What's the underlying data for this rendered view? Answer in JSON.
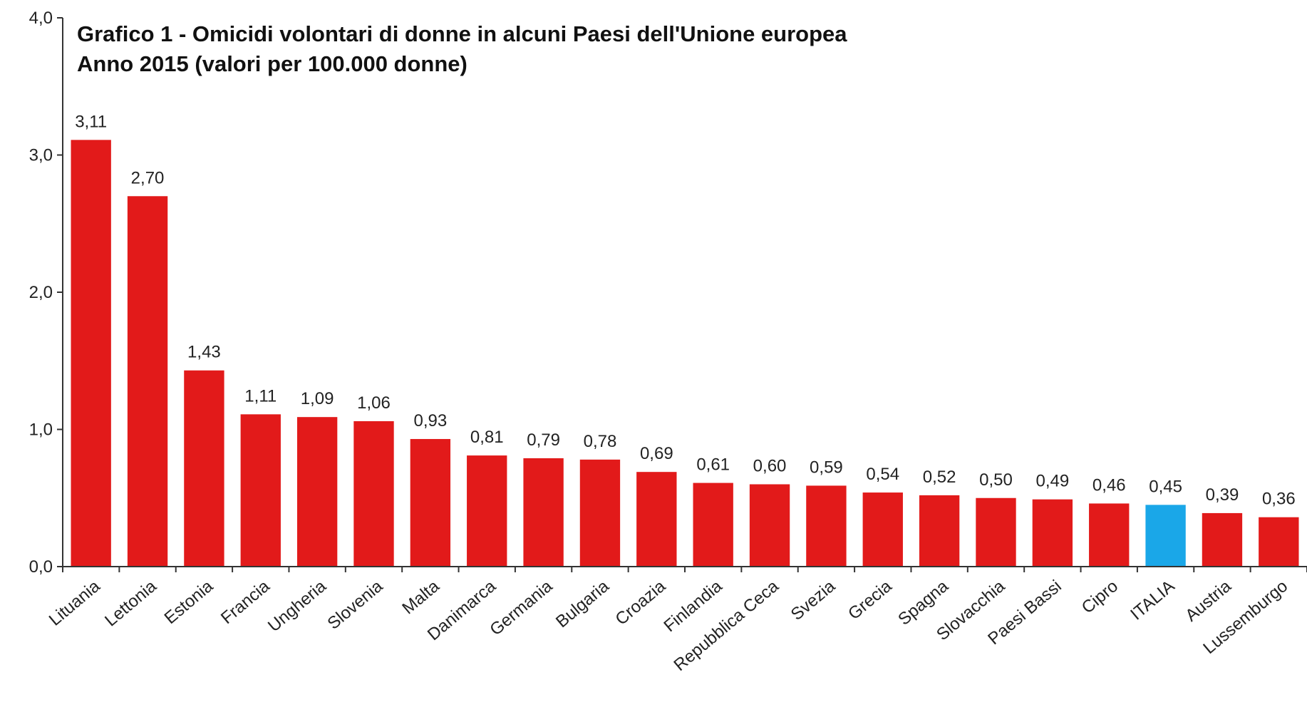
{
  "chart_data": {
    "type": "bar",
    "title": "Grafico 1 - Omicidi volontari di donne in alcuni Paesi dell'Unione europea",
    "subtitle": "Anno 2015 (valori per 100.000 donne)",
    "xlabel": "",
    "ylabel": "",
    "ylim": [
      0,
      4
    ],
    "yticks": [
      {
        "value": 0,
        "label": "0,0"
      },
      {
        "value": 1,
        "label": "1,0"
      },
      {
        "value": 2,
        "label": "2,0"
      },
      {
        "value": 3,
        "label": "3,0"
      },
      {
        "value": 4,
        "label": "4,0"
      }
    ],
    "grid": false,
    "colors": {
      "default": "#e21a1a",
      "highlight": "#1aa7e8",
      "axis": "#333333"
    },
    "highlight": "ITALIA",
    "categories": [
      "Lituania",
      "Lettonia",
      "Estonia",
      "Francia",
      "Ungheria",
      "Slovenia",
      "Malta",
      "Danimarca",
      "Germania",
      "Bulgaria",
      "Croazia",
      "Finlandia",
      "Repubblica Ceca",
      "Svezia",
      "Grecia",
      "Spagna",
      "Slovacchia",
      "Paesi Bassi",
      "Cipro",
      "ITALIA",
      "Austria",
      "Lussemburgo"
    ],
    "values": [
      3.11,
      2.7,
      1.43,
      1.11,
      1.09,
      1.06,
      0.93,
      0.81,
      0.79,
      0.78,
      0.69,
      0.61,
      0.6,
      0.59,
      0.54,
      0.52,
      0.5,
      0.49,
      0.46,
      0.45,
      0.39,
      0.36
    ],
    "value_labels": [
      "3,11",
      "2,70",
      "1,43",
      "1,11",
      "1,09",
      "1,06",
      "0,93",
      "0,81",
      "0,79",
      "0,78",
      "0,69",
      "0,61",
      "0,60",
      "0,59",
      "0,54",
      "0,52",
      "0,50",
      "0,49",
      "0,46",
      "0,45",
      "0,39",
      "0,36"
    ]
  }
}
